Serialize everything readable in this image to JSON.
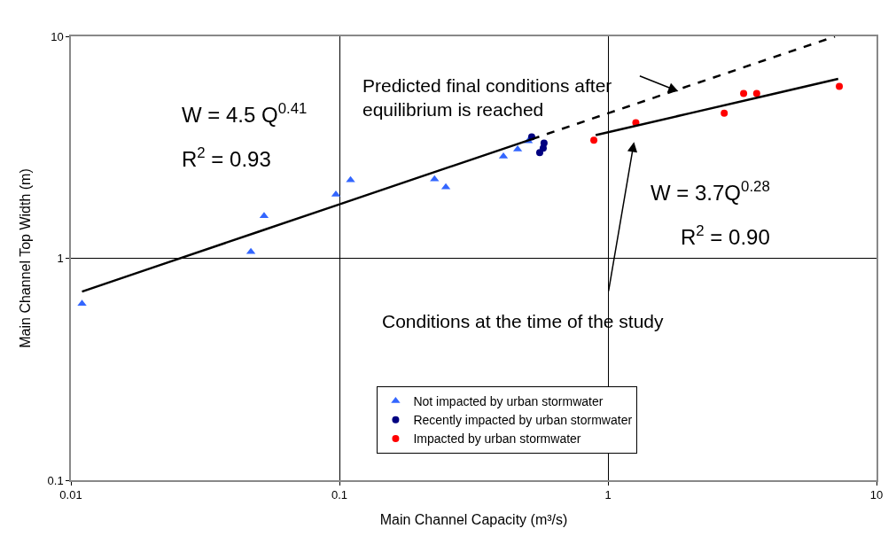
{
  "chart_data": {
    "type": "scatter",
    "xlabel": "Main Channel Capacity (m³/s)",
    "ylabel": "Main Channel Top Width (m)",
    "log": "xy",
    "xlim": [
      0.01,
      10
    ],
    "ylim": [
      0.1,
      10
    ],
    "xticks": [
      0.01,
      0.1,
      1,
      10
    ],
    "yticks": [
      0.1,
      1,
      10
    ],
    "grid": true,
    "legend": "bottom",
    "series": [
      {
        "name": "Not impacted by urban stormwater",
        "color": "#3366ff",
        "marker": "triangle",
        "x": [
          0.011,
          0.0468,
          0.0524,
          0.097,
          0.11,
          0.226,
          0.249,
          0.408,
          0.461,
          0.505
        ],
        "values": [
          0.625,
          1.07,
          1.55,
          1.94,
          2.25,
          2.27,
          2.09,
          2.88,
          3.1,
          3.37
        ]
      },
      {
        "name": "Recently impacted by urban stormwater",
        "color": "#000080",
        "marker": "circle",
        "x": [
          0.52,
          0.578,
          0.574,
          0.557
        ],
        "values": [
          3.52,
          3.3,
          3.13,
          2.99
        ]
      },
      {
        "name": "Impacted by urban stormwater",
        "color": "#ff0000",
        "marker": "circle",
        "x": [
          0.886,
          1.27,
          2.71,
          3.2,
          3.58,
          7.27
        ],
        "values": [
          3.4,
          4.08,
          4.51,
          5.53,
          5.53,
          5.95
        ]
      },
      {
        "type": "line",
        "color": "#000000",
        "line_style": "solid",
        "marker": "none",
        "x": [
          0.011,
          0.02,
          0.05,
          0.1,
          0.2,
          0.52
        ],
        "values": [
          0.708,
          0.905,
          1.318,
          1.751,
          2.326,
          3.44
        ]
      },
      {
        "type": "line",
        "color": "#000000",
        "line_style": "dashed",
        "marker": "none",
        "x": [
          0.52,
          1,
          2,
          7
        ],
        "values": [
          3.44,
          4.5,
          5.98,
          9.98
        ]
      },
      {
        "type": "line",
        "color": "#000000",
        "line_style": "solid",
        "marker": "none",
        "x": [
          0.9,
          2,
          4,
          7.2
        ],
        "values": [
          3.59,
          4.49,
          5.45,
          6.43
        ]
      }
    ],
    "annotations": [
      "W = 4.5 Q$^{0.41}$",
      "R$^{2}$ = 0.93",
      "W = 3.7Q$^{0.28}$",
      "R$^{2}$ = 0.90",
      "Predicted final conditions after equilibrium is reached",
      "Conditions at the time of the study"
    ]
  }
}
